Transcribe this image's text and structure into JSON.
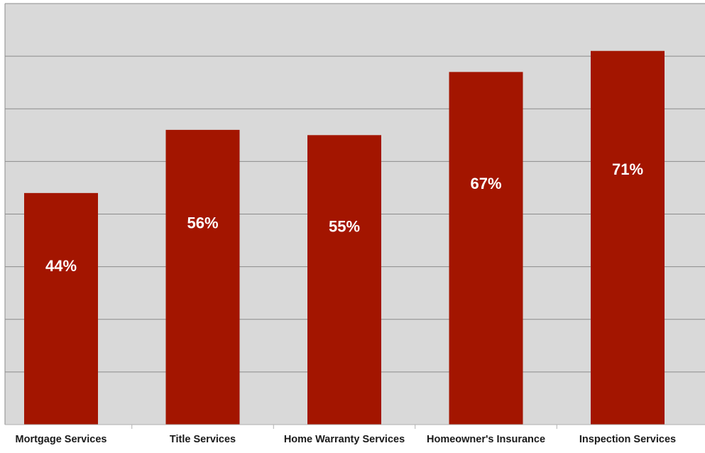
{
  "chart_data": {
    "type": "bar",
    "categories": [
      "Mortgage Services",
      "Title Services",
      "Home Warranty Services",
      "Homeowner's Insurance",
      "Inspection Services"
    ],
    "values": [
      44,
      56,
      55,
      67,
      71
    ],
    "value_labels": [
      "44%",
      "56%",
      "55%",
      "67%",
      "71%"
    ],
    "title": "",
    "xlabel": "",
    "ylabel": "",
    "ylim": [
      0,
      80
    ],
    "y_gridline_step": 10,
    "grid": true,
    "legend": "none",
    "colors": {
      "bar": "#a31500",
      "plot_background": "#d9d9d9",
      "gridline": "#8c8c8c",
      "value_label": "#ffffff",
      "category_label": "#1a1a1a"
    }
  }
}
